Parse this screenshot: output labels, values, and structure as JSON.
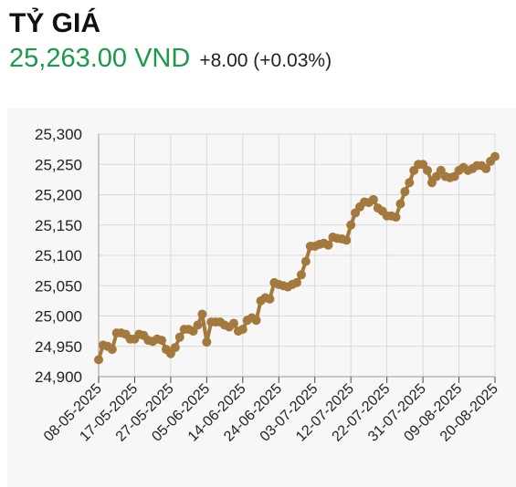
{
  "header": {
    "title": "TỶ GIÁ",
    "price": "25,263.00 VND",
    "change": "+8.00 (+0.03%)"
  },
  "colors": {
    "line": "#a4793d",
    "price": "#1a9a4a",
    "grid": "#d9d9d9",
    "panel": "#f7f7f7"
  },
  "chart_data": {
    "type": "line",
    "title": "",
    "xlabel": "",
    "ylabel": "",
    "ylim": [
      24900,
      25300
    ],
    "yticks": [
      24900,
      24950,
      25000,
      25050,
      25100,
      25150,
      25200,
      25250,
      25300
    ],
    "ytick_labels": [
      "24,900",
      "24,950",
      "25,000",
      "25,050",
      "25,100",
      "25,150",
      "25,200",
      "25,250",
      "25,300"
    ],
    "xtick_labels": [
      "08-05-2025",
      "17-05-2025",
      "27-05-2025",
      "05-06-2025",
      "14-06-2025",
      "24-06-2025",
      "03-07-2025",
      "12-07-2025",
      "22-07-2025",
      "31-07-2025",
      "09-08-2025",
      "20-08-2025"
    ],
    "grid": true,
    "series": [
      {
        "values": [
          24928,
          24952,
          24950,
          24945,
          24972,
          24972,
          24970,
          24962,
          24962,
          24970,
          24968,
          24960,
          24958,
          24962,
          24960,
          24945,
          24938,
          24948,
          24965,
          24978,
          24978,
          24975,
          24985,
          25003,
          24957,
          24990,
          24990,
          24990,
          24985,
          24982,
          24988,
          24975,
          24978,
          24993,
          24997,
          24993,
          25025,
          25030,
          25028,
          25055,
          25052,
          25050,
          25048,
          25052,
          25055,
          25068,
          25090,
          25115,
          25115,
          25118,
          25120,
          25117,
          25130,
          25128,
          25127,
          25125,
          25150,
          25170,
          25180,
          25188,
          25187,
          25192,
          25178,
          25173,
          25165,
          25165,
          25163,
          25185,
          25205,
          25220,
          25240,
          25250,
          25250,
          25240,
          25220,
          25230,
          25240,
          25230,
          25228,
          25230,
          25240,
          25245,
          25240,
          25243,
          25248,
          25248,
          25243,
          25255,
          25263
        ]
      }
    ]
  }
}
